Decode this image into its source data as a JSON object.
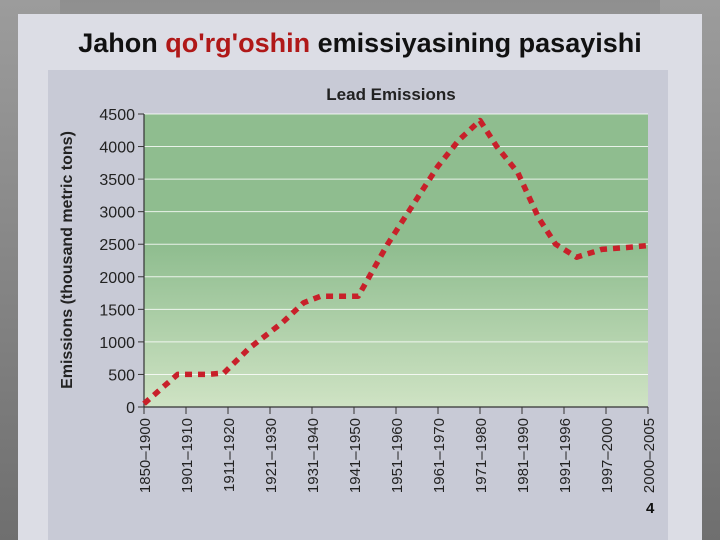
{
  "slide": {
    "title_part1": "Jahon ",
    "title_accent": "qo'rg'oshin",
    "title_part2": " emissiyasining pasayishi",
    "page_number": "4",
    "colors": {
      "accent": "#b01818",
      "line": "#c8202a",
      "plot_top": "#cfe3c4",
      "plot_mid": "#8fbd8f"
    }
  },
  "chart_data": {
    "type": "line",
    "title": "Lead Emissions",
    "xlabel": "",
    "ylabel": "Emissions (thousand metric tons)",
    "categories": [
      "1850–1900",
      "1901–1910",
      "1911–1920",
      "1921–1930",
      "1931–1940",
      "1941–1950",
      "1951–1960",
      "1961–1970",
      "1971–1980",
      "1981–1990",
      "1991–1996",
      "1997–2000",
      "2000–2005"
    ],
    "x_ticks": [
      0,
      1,
      2,
      3,
      4,
      5,
      6,
      7,
      8,
      9,
      10,
      11,
      12
    ],
    "y_ticks": [
      0,
      500,
      1000,
      1500,
      2000,
      2500,
      3000,
      3500,
      4000,
      4500
    ],
    "ylim": [
      0,
      4500
    ],
    "grid": true,
    "series": [
      {
        "line_style": "dotted",
        "points": [
          [
            0,
            50
          ],
          [
            0.8,
            500
          ],
          [
            1.5,
            500
          ],
          [
            1.9,
            520
          ],
          [
            2.5,
            900
          ],
          [
            3.3,
            1300
          ],
          [
            3.8,
            1600
          ],
          [
            4.2,
            1700
          ],
          [
            4.8,
            1700
          ],
          [
            5.1,
            1700
          ],
          [
            5.8,
            2500
          ],
          [
            6.5,
            3200
          ],
          [
            7.0,
            3700
          ],
          [
            7.5,
            4100
          ],
          [
            8.0,
            4400
          ],
          [
            8.4,
            4000
          ],
          [
            8.9,
            3600
          ],
          [
            9.4,
            2900
          ],
          [
            9.8,
            2500
          ],
          [
            10.3,
            2300
          ],
          [
            10.9,
            2420
          ],
          [
            11.5,
            2450
          ],
          [
            12.0,
            2480
          ]
        ]
      }
    ]
  }
}
